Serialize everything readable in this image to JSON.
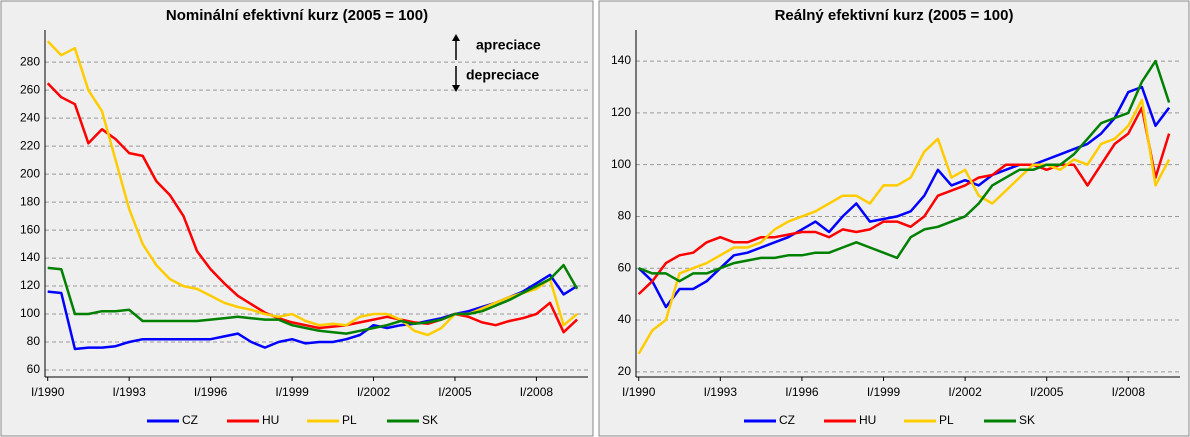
{
  "chart_data": [
    {
      "type": "line",
      "title": "Nominální efektivní kurz (2005 = 100)",
      "annotations": [
        "apreciace",
        "depreciace"
      ],
      "x": [
        1990,
        1990.5,
        1991,
        1991.5,
        1992,
        1992.5,
        1993,
        1993.5,
        1994,
        1994.5,
        1995,
        1995.5,
        1996,
        1996.5,
        1997,
        1997.5,
        1998,
        1998.5,
        1999,
        1999.5,
        2000,
        2000.5,
        2001,
        2001.5,
        2002,
        2002.5,
        2003,
        2003.5,
        2004,
        2004.5,
        2005,
        2005.5,
        2006,
        2006.5,
        2007,
        2007.5,
        2008,
        2008.5,
        2009,
        2009.5
      ],
      "xlim": [
        1989.9,
        2009.9
      ],
      "xticks": [
        {
          "value": 1990,
          "label": "I/1990"
        },
        {
          "value": 1993,
          "label": "I/1993"
        },
        {
          "value": 1996,
          "label": "I/1996"
        },
        {
          "value": 1999,
          "label": "I/1999"
        },
        {
          "value": 2002,
          "label": "I/2002"
        },
        {
          "value": 2005,
          "label": "I/2005"
        },
        {
          "value": 2008,
          "label": "I/2008"
        }
      ],
      "ylim": [
        55,
        303
      ],
      "yticks": [
        60,
        80,
        100,
        120,
        140,
        160,
        180,
        200,
        220,
        240,
        260,
        280
      ],
      "grid": true,
      "series": [
        {
          "name": "CZ",
          "color": "#0000ff",
          "values": [
            116,
            115,
            75,
            76,
            76,
            77,
            80,
            82,
            82,
            82,
            82,
            82,
            82,
            84,
            86,
            80,
            76,
            80,
            82,
            79,
            80,
            80,
            82,
            85,
            92,
            90,
            92,
            93,
            95,
            97,
            100,
            102,
            105,
            108,
            112,
            116,
            122,
            128,
            114,
            120
          ]
        },
        {
          "name": "HU",
          "color": "#ff0000",
          "values": [
            265,
            255,
            250,
            222,
            232,
            225,
            215,
            213,
            195,
            185,
            170,
            145,
            132,
            122,
            113,
            107,
            101,
            97,
            94,
            92,
            90,
            91,
            92,
            94,
            96,
            98,
            96,
            94,
            93,
            96,
            100,
            98,
            94,
            92,
            95,
            97,
            100,
            108,
            87,
            96
          ]
        },
        {
          "name": "PL",
          "color": "#ffcc00",
          "values": [
            295,
            285,
            290,
            260,
            245,
            210,
            175,
            150,
            135,
            125,
            120,
            118,
            113,
            108,
            105,
            103,
            100,
            98,
            100,
            95,
            92,
            93,
            92,
            98,
            100,
            100,
            96,
            88,
            85,
            90,
            100,
            100,
            104,
            108,
            112,
            115,
            118,
            125,
            92,
            100
          ]
        },
        {
          "name": "SK",
          "color": "#008000",
          "values": [
            133,
            132,
            100,
            100,
            102,
            102,
            103,
            95,
            95,
            95,
            95,
            95,
            96,
            97,
            98,
            97,
            96,
            96,
            92,
            90,
            88,
            87,
            86,
            88,
            90,
            92,
            95,
            93,
            94,
            96,
            100,
            100,
            102,
            106,
            110,
            115,
            120,
            125,
            135,
            118
          ]
        }
      ]
    },
    {
      "type": "line",
      "title": "Reálný efektivní kurz (2005 = 100)",
      "x": [
        1990,
        1990.5,
        1991,
        1991.5,
        1992,
        1992.5,
        1993,
        1993.5,
        1994,
        1994.5,
        1995,
        1995.5,
        1996,
        1996.5,
        1997,
        1997.5,
        1998,
        1998.5,
        1999,
        1999.5,
        2000,
        2000.5,
        2001,
        2001.5,
        2002,
        2002.5,
        2003,
        2003.5,
        2004,
        2004.5,
        2005,
        2005.5,
        2006,
        2006.5,
        2007,
        2007.5,
        2008,
        2008.5,
        2009,
        2009.5
      ],
      "xlim": [
        1989.9,
        2009.9
      ],
      "xticks": [
        {
          "value": 1990,
          "label": "I/1990"
        },
        {
          "value": 1993,
          "label": "I/1993"
        },
        {
          "value": 1996,
          "label": "I/1996"
        },
        {
          "value": 1999,
          "label": "I/1999"
        },
        {
          "value": 2002,
          "label": "I/2002"
        },
        {
          "value": 2005,
          "label": "I/2005"
        },
        {
          "value": 2008,
          "label": "I/2008"
        }
      ],
      "ylim": [
        18,
        152
      ],
      "yticks": [
        20,
        40,
        60,
        80,
        100,
        120,
        140
      ],
      "grid": true,
      "series": [
        {
          "name": "CZ",
          "color": "#0000ff",
          "values": [
            60,
            55,
            45,
            52,
            52,
            55,
            60,
            65,
            66,
            68,
            70,
            72,
            75,
            78,
            74,
            80,
            85,
            78,
            79,
            80,
            82,
            88,
            98,
            92,
            94,
            92,
            96,
            98,
            100,
            100,
            102,
            104,
            106,
            108,
            112,
            118,
            128,
            130,
            115,
            122
          ]
        },
        {
          "name": "HU",
          "color": "#ff0000",
          "values": [
            50,
            55,
            62,
            65,
            66,
            70,
            72,
            70,
            70,
            72,
            72,
            73,
            74,
            74,
            72,
            75,
            74,
            75,
            78,
            78,
            76,
            80,
            88,
            90,
            92,
            95,
            96,
            100,
            100,
            100,
            98,
            100,
            100,
            92,
            100,
            108,
            112,
            122,
            95,
            112
          ]
        },
        {
          "name": "PL",
          "color": "#ffcc00",
          "values": [
            27,
            36,
            40,
            58,
            60,
            62,
            65,
            68,
            68,
            70,
            75,
            78,
            80,
            82,
            85,
            88,
            88,
            85,
            92,
            92,
            95,
            105,
            110,
            95,
            98,
            88,
            85,
            90,
            95,
            100,
            100,
            98,
            102,
            100,
            108,
            110,
            115,
            125,
            92,
            102
          ]
        },
        {
          "name": "SK",
          "color": "#008000",
          "values": [
            60,
            58,
            58,
            55,
            58,
            58,
            60,
            62,
            63,
            64,
            64,
            65,
            65,
            66,
            66,
            68,
            70,
            68,
            66,
            64,
            72,
            75,
            76,
            78,
            80,
            85,
            92,
            95,
            98,
            98,
            100,
            100,
            104,
            110,
            116,
            118,
            120,
            132,
            140,
            124
          ]
        }
      ]
    }
  ]
}
